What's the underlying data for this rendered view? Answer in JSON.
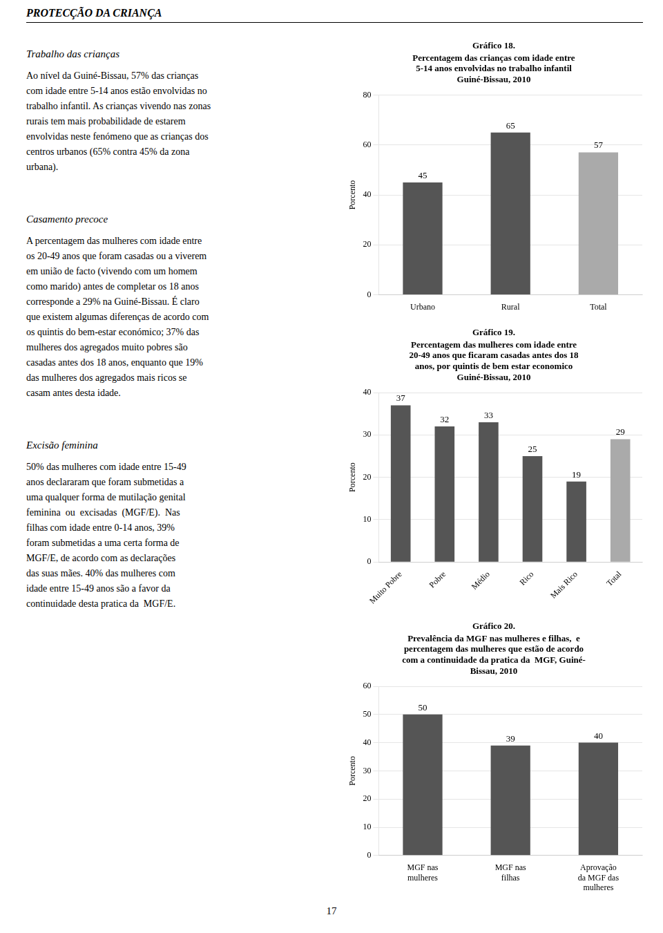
{
  "title": "PROTECÇÃO DA CRIANÇA",
  "sections": [
    {
      "title": "Trabalho das crianças",
      "lines": [
        "Ao nível da Guiné-Bissau, 57% das crianças",
        "com idade entre 5-14 anos estão envolvidas no",
        "trabalho infantil. As crianças vivendo nas zonas",
        "rurais tem mais probabilidade de estarem",
        "envolvidas neste fenómeno que as crianças dos",
        "centros urbanos (65% contra 45% da zona",
        "urbana)."
      ]
    },
    {
      "title": "Casamento precoce",
      "lines": [
        "A percentagem das mulheres com idade entre",
        "os 20-49 anos que foram casadas ou a viverem",
        "em união de facto (vivendo com um homem",
        "como marido) antes de completar os 18 anos",
        "corresponde a 29% na Guiné-Bissau. É claro",
        "que existem algumas diferenças de acordo com",
        "os quintis do bem-estar económico; 37% das",
        "mulheres dos agregados muito pobres são",
        "casadas antes dos 18 anos, enquanto que 19%",
        "das mulheres dos agregados mais ricos se",
        "casam antes desta idade."
      ]
    },
    {
      "title": "Excisão feminina",
      "lines": [
        "50% das mulheres com idade entre 15-49",
        "anos declararam que foram submetidas a",
        "uma qualquer forma de mutilação genital",
        "feminina  ou  excisadas  (MGF/E).  Nas",
        "filhas com idade entre 0-14 anos, 39%",
        "foram submetidas a uma certa forma de",
        "MGF/E, de acordo com as declarações",
        "das suas mães. 40% das mulheres com",
        "idade entre 15-49 anos são a favor da",
        "continuidade desta pratica da  MGF/E."
      ]
    }
  ],
  "page_number": "17",
  "chart_data": [
    {
      "type": "bar",
      "title": "Gráfico 18.",
      "subtitle": [
        "Percentagem das crianças com idade entre",
        "5-14 anos envolvidas no trabalho infantil",
        "Guiné-Bissau, 2010"
      ],
      "categories": [
        "Urbano",
        "Rural",
        "Total"
      ],
      "values": [
        45,
        65,
        57
      ],
      "colors": [
        "#555555",
        "#555555",
        "#aaaaaa"
      ],
      "ylabel": "Porcento",
      "ylim": [
        0,
        80
      ],
      "yticks": [
        0,
        20,
        40,
        60,
        80
      ],
      "grid": true,
      "data_labels": true
    },
    {
      "type": "bar",
      "title": "Gráfico 19.",
      "subtitle": [
        "Percentagem das mulheres com idade entre",
        "20-49 anos que ficaram casadas antes dos 18",
        "anos, por quintis de bem estar economico",
        "Guiné-Bissau, 2010"
      ],
      "categories": [
        "Muito Pobre",
        "Pobre",
        "Médio",
        "Rico",
        "Mais Rico",
        "Total"
      ],
      "values": [
        37,
        32,
        33,
        25,
        19,
        29
      ],
      "colors": [
        "#555555",
        "#555555",
        "#555555",
        "#555555",
        "#555555",
        "#aaaaaa"
      ],
      "ylabel": "Porcento",
      "ylim": [
        0,
        40
      ],
      "yticks": [
        0,
        10,
        20,
        30,
        40
      ],
      "grid": true,
      "data_labels": true
    },
    {
      "type": "bar",
      "title": "Gráfico 20.",
      "subtitle": [
        "Prevalência da MGF nas mulheres e filhas,  e",
        "percentagem das mulheres que estão de acordo",
        "com a continuidade da pratica da  MGF, Guiné-",
        "Bissau, 2010"
      ],
      "categories": [
        "MGF nas\nmulheres",
        "MGF nas\nfilhas",
        "Aprovação\nda MGF das\nmulheres"
      ],
      "values": [
        50,
        39,
        40
      ],
      "colors": [
        "#555555",
        "#555555",
        "#555555"
      ],
      "ylabel": "Porcento",
      "ylim": [
        0,
        60
      ],
      "yticks": [
        0,
        10,
        20,
        30,
        40,
        50,
        60
      ],
      "grid": true,
      "data_labels": true
    }
  ]
}
